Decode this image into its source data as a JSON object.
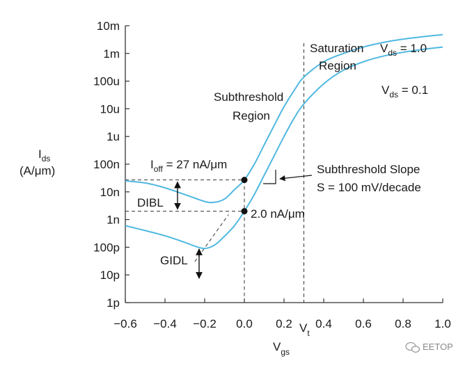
{
  "chart_data": {
    "type": "line",
    "title": "",
    "xlabel": {
      "main": "V",
      "sub": "gs"
    },
    "ylabel": {
      "main": "I",
      "sub": "ds",
      "unit": "(A/μm)"
    },
    "xlim": [
      -0.6,
      1.0
    ],
    "ylim_log10": [
      -12,
      -2
    ],
    "yscale": "log",
    "x_ticks": [
      -0.6,
      -0.4,
      -0.2,
      0.0,
      0.2,
      0.4,
      0.6,
      0.8,
      1.0
    ],
    "x_tick_labels": [
      "−0.6",
      "−0.4",
      "−0.2",
      "0.0",
      "0.2",
      "0.4",
      "0.6",
      "0.8",
      "1.0"
    ],
    "y_ticks_log10": [
      -12,
      -11,
      -10,
      -9,
      -8,
      -7,
      -6,
      -5,
      -4,
      -3,
      -2
    ],
    "y_tick_labels": [
      "1p",
      "10p",
      "100p",
      "1n",
      "10n",
      "100n",
      "1u",
      "10u",
      "100u",
      "1m",
      "10m"
    ],
    "series_color": "#4fb8e0",
    "series": [
      {
        "label_main": "V",
        "label_sub": "ds",
        "label_value": " = 1.0",
        "x": [
          -0.6,
          -0.5,
          -0.4,
          -0.3,
          -0.2,
          -0.15,
          -0.1,
          -0.05,
          0.0,
          0.05,
          0.1,
          0.15,
          0.2,
          0.25,
          0.3,
          0.4,
          0.5,
          0.6,
          0.7,
          0.8,
          0.9,
          1.0
        ],
        "y": [
          2.5e-08,
          2.1e-08,
          1.4e-08,
          8e-09,
          4.5e-09,
          4.2e-09,
          5.5e-09,
          1.2e-08,
          2.7e-08,
          1e-07,
          5e-07,
          2.5e-06,
          1.2e-05,
          4.5e-05,
          0.00014,
          0.0005,
          0.001,
          0.0017,
          0.0025,
          0.0033,
          0.004,
          0.0048
        ]
      },
      {
        "label_main": "V",
        "label_sub": "ds",
        "label_value": " = 0.1",
        "x": [
          -0.6,
          -0.5,
          -0.4,
          -0.3,
          -0.25,
          -0.2,
          -0.15,
          -0.1,
          -0.05,
          0.0,
          0.05,
          0.1,
          0.15,
          0.2,
          0.25,
          0.3,
          0.4,
          0.5,
          0.6,
          0.7,
          0.8,
          0.9,
          1.0
        ],
        "y": [
          6e-10,
          4e-10,
          2.6e-10,
          1.5e-10,
          1.1e-10,
          9e-11,
          1.2e-10,
          2.5e-10,
          6e-10,
          2e-09,
          8e-09,
          4e-08,
          2e-07,
          1e-06,
          4.5e-06,
          1.5e-05,
          8e-05,
          0.00025,
          0.0005,
          0.0008,
          0.0011,
          0.0014,
          0.0017
        ]
      }
    ],
    "vt_x": 0.3,
    "vt_label": {
      "main": "V",
      "sub": "t"
    },
    "ioff_high": {
      "x": 0.0,
      "y": 2.7e-08,
      "label_main": "I",
      "label_sub": "off",
      "label_value": " = 27 nA/μm"
    },
    "ioff_low": {
      "x": 0.0,
      "y": 2e-09,
      "label": "2.0 nA/μm"
    },
    "annotations": {
      "saturation": [
        "Saturation",
        "Region"
      ],
      "subthreshold": [
        "Subthreshold",
        "Region"
      ],
      "slope": [
        "Subthreshold Slope",
        "S = 100 mV/decade"
      ],
      "dibl": "DIBL",
      "gidl": "GIDL"
    },
    "gidl_line": {
      "x": [
        -0.25,
        -0.08
      ],
      "y": [
        3e-11,
        1.5e-09
      ]
    }
  },
  "watermark": {
    "icon": "wechat-icon",
    "text": "EETOP"
  }
}
